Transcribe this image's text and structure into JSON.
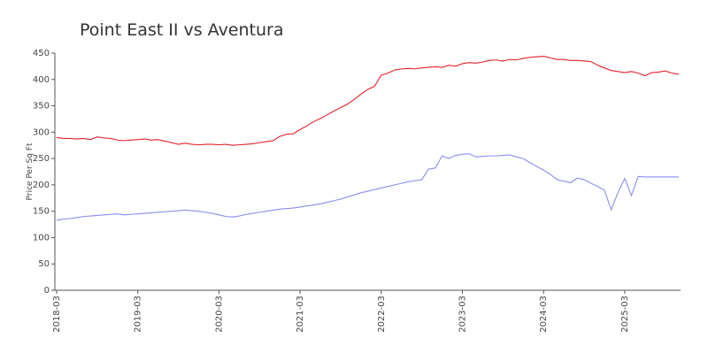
{
  "chart_data": {
    "type": "line",
    "title": "Point East II vs Aventura",
    "ylabel": "Price Per Sq Ft",
    "xlim": [
      "2018-03",
      "2025-11"
    ],
    "x": [
      "2018-03",
      "2018-04",
      "2018-05",
      "2018-06",
      "2018-07",
      "2018-08",
      "2018-09",
      "2018-10",
      "2018-11",
      "2018-12",
      "2019-01",
      "2019-02",
      "2019-03",
      "2019-04",
      "2019-05",
      "2019-06",
      "2019-07",
      "2019-08",
      "2019-09",
      "2019-10",
      "2019-11",
      "2019-12",
      "2020-01",
      "2020-02",
      "2020-03",
      "2020-04",
      "2020-05",
      "2020-06",
      "2020-07",
      "2020-08",
      "2020-09",
      "2020-10",
      "2020-11",
      "2020-12",
      "2021-01",
      "2021-02",
      "2021-03",
      "2021-04",
      "2021-05",
      "2021-06",
      "2021-07",
      "2021-08",
      "2021-09",
      "2021-10",
      "2021-11",
      "2021-12",
      "2022-01",
      "2022-02",
      "2022-03",
      "2022-04",
      "2022-05",
      "2022-06",
      "2022-07",
      "2022-08",
      "2022-09",
      "2022-10",
      "2022-11",
      "2022-12",
      "2023-01",
      "2023-02",
      "2023-03",
      "2023-04",
      "2023-05",
      "2023-06",
      "2023-07",
      "2023-08",
      "2023-09",
      "2023-10",
      "2023-11",
      "2023-12",
      "2024-01",
      "2024-02",
      "2024-03",
      "2024-04",
      "2024-05",
      "2024-06",
      "2024-07",
      "2024-08",
      "2024-09",
      "2024-10",
      "2024-11",
      "2024-12",
      "2025-01",
      "2025-02",
      "2025-03",
      "2025-04",
      "2025-05",
      "2025-06",
      "2025-07",
      "2025-08",
      "2025-09",
      "2025-10",
      "2025-11"
    ],
    "series": [
      {
        "color": "#e8202a",
        "values": [
          290,
          288,
          288,
          287,
          288,
          286,
          291,
          289,
          288,
          285,
          284,
          285,
          286,
          287,
          285,
          286,
          283,
          280,
          277,
          279,
          277,
          276,
          277,
          277,
          276,
          277,
          275,
          276,
          277,
          278,
          280,
          282,
          284,
          292,
          296,
          297,
          305,
          312,
          320,
          326,
          333,
          340,
          347,
          353,
          362,
          372,
          381,
          387,
          408,
          412,
          418,
          420,
          421,
          420,
          422,
          423,
          424,
          423,
          427,
          425,
          430,
          432,
          431,
          433,
          436,
          437,
          435,
          438,
          437,
          440,
          442,
          443,
          444,
          441,
          438,
          438,
          436,
          436,
          435,
          434,
          427,
          422,
          417,
          415,
          413,
          415,
          412,
          407,
          413,
          414,
          416,
          412,
          410
        ]
      },
      {
        "color": "#8c8cf0",
        "values": [
          133,
          135,
          136,
          138,
          140,
          141,
          142,
          143,
          144,
          145,
          143,
          144,
          145,
          146,
          147,
          148,
          149,
          150,
          151,
          152,
          151,
          150,
          148,
          146,
          143,
          140,
          139,
          141,
          144,
          146,
          148,
          150,
          152,
          154,
          155,
          156,
          158,
          160,
          162,
          164,
          167,
          170,
          173,
          177,
          181,
          185,
          188,
          191,
          194,
          197,
          200,
          203,
          206,
          208,
          210,
          230,
          232,
          255,
          250,
          256,
          258,
          259,
          253,
          254,
          255,
          255,
          256,
          257,
          253,
          250,
          242,
          235,
          228,
          220,
          210,
          207,
          204,
          213,
          210,
          203,
          197,
          190,
          153,
          185,
          212,
          180,
          216,
          215,
          215,
          215,
          215,
          215,
          215
        ]
      }
    ],
    "ylim": [
      0,
      450
    ],
    "yticks": [
      0,
      50,
      100,
      150,
      200,
      250,
      300,
      350,
      400,
      450
    ],
    "xticks": [
      "2018-03",
      "2019-03",
      "2020-03",
      "2021-03",
      "2022-03",
      "2023-03",
      "2024-03",
      "2025-03"
    ]
  }
}
